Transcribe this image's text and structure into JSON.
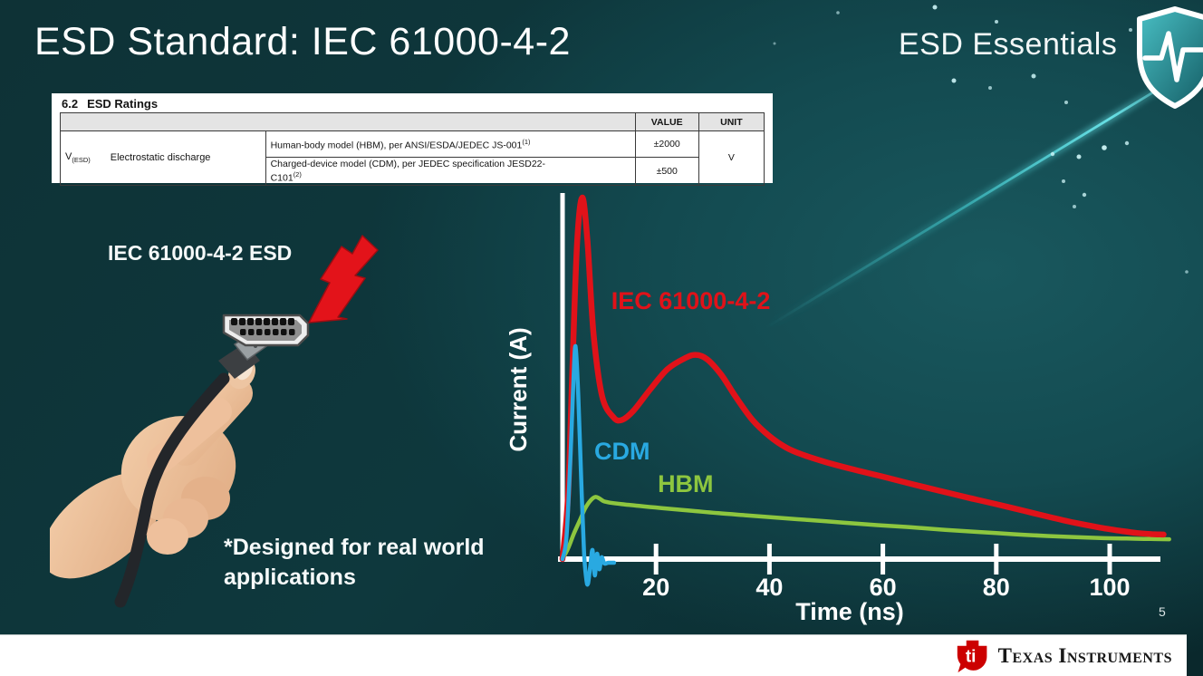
{
  "slide": {
    "title": "ESD Standard: IEC 61000-4-2",
    "program_badge": "ESD Essentials",
    "illustration_label": "IEC 61000-4-2 ESD",
    "note_line1": "*Designed for real world",
    "note_line2": "applications",
    "page_number": "5",
    "footer_brand": "Texas Instruments"
  },
  "ratings_table": {
    "section_number": "6.2",
    "section_title": "ESD Ratings",
    "col_value": "VALUE",
    "col_unit": "UNIT",
    "symbol": "V",
    "symbol_sub": "(ESD)",
    "parameter": "Electrostatic discharge",
    "unit": "V",
    "rows": [
      {
        "description": "Human-body model (HBM), per ANSI/ESDA/JEDEC JS-001",
        "sup": "(1)",
        "value": "±2000"
      },
      {
        "description": "Charged-device model (CDM), per JEDEC specification JESD22-",
        "description_cont": "C101",
        "sup": "(2)",
        "value": "±500"
      }
    ]
  },
  "chart_data": {
    "type": "line",
    "xlabel": "Time (ns)",
    "ylabel": "Current (A)",
    "xlim": [
      0,
      112
    ],
    "ylim": [
      -0.1,
      1.05
    ],
    "x_ticks": [
      20,
      40,
      60,
      80,
      100
    ],
    "grid": false,
    "legend_position": "inline-labels",
    "note": "y axis unlabeled (relative current amplitude, IEC peak = 1.0)",
    "colors": {
      "axis": "#ffffff",
      "iec": "#e01219",
      "cdm": "#29a9e1",
      "hbm": "#8dc63f"
    },
    "series": [
      {
        "name": "HBM",
        "color": "#8dc63f",
        "width": 4.5,
        "label_t": 20.3,
        "label_a": 0.203,
        "points": [
          [
            3.5,
            0
          ],
          [
            4.5,
            0.03
          ],
          [
            5.5,
            0.07
          ],
          [
            6.5,
            0.105
          ],
          [
            7.5,
            0.14
          ],
          [
            8.5,
            0.163
          ],
          [
            9.3,
            0.172
          ],
          [
            10,
            0.168
          ],
          [
            10.8,
            0.16
          ],
          [
            12,
            0.156
          ],
          [
            14,
            0.152
          ],
          [
            17,
            0.147
          ],
          [
            21,
            0.141
          ],
          [
            26,
            0.134
          ],
          [
            31,
            0.127
          ],
          [
            36,
            0.121
          ],
          [
            41,
            0.115
          ],
          [
            47,
            0.108
          ],
          [
            53,
            0.101
          ],
          [
            59,
            0.094
          ],
          [
            65,
            0.088
          ],
          [
            71,
            0.081
          ],
          [
            77,
            0.075
          ],
          [
            83,
            0.069
          ],
          [
            89,
            0.064
          ],
          [
            94,
            0.061
          ],
          [
            99,
            0.058
          ],
          [
            103,
            0.057
          ],
          [
            106,
            0.056
          ],
          [
            110.5,
            0.055
          ]
        ]
      },
      {
        "name": "IEC 61000-4-2",
        "color": "#e01219",
        "width": 6.5,
        "label_t": 12.1,
        "label_a": 0.71,
        "points": [
          [
            3.5,
            0
          ],
          [
            4.5,
            0.18
          ],
          [
            5.3,
            0.55
          ],
          [
            6.1,
            0.88
          ],
          [
            7,
            1.0
          ],
          [
            7.9,
            0.88
          ],
          [
            9,
            0.62
          ],
          [
            10.5,
            0.45
          ],
          [
            12.5,
            0.392
          ],
          [
            14,
            0.385
          ],
          [
            16,
            0.41
          ],
          [
            19,
            0.47
          ],
          [
            22,
            0.525
          ],
          [
            25,
            0.555
          ],
          [
            27,
            0.565
          ],
          [
            29,
            0.553
          ],
          [
            31.5,
            0.51
          ],
          [
            34,
            0.45
          ],
          [
            37,
            0.385
          ],
          [
            40,
            0.34
          ],
          [
            43,
            0.308
          ],
          [
            46,
            0.288
          ],
          [
            50,
            0.268
          ],
          [
            55,
            0.247
          ],
          [
            60,
            0.228
          ],
          [
            65,
            0.208
          ],
          [
            70,
            0.189
          ],
          [
            75,
            0.17
          ],
          [
            80,
            0.152
          ],
          [
            85,
            0.133
          ],
          [
            90,
            0.114
          ],
          [
            94,
            0.1
          ],
          [
            98,
            0.088
          ],
          [
            102,
            0.078
          ],
          [
            105,
            0.072
          ],
          [
            107.5,
            0.069
          ],
          [
            109.5,
            0.068
          ]
        ]
      },
      {
        "name": "CDM",
        "color": "#29a9e1",
        "width": 4.5,
        "label_t": 9.1,
        "label_a": 0.293,
        "points": [
          [
            3.5,
            0
          ],
          [
            4.2,
            0.06
          ],
          [
            4.9,
            0.28
          ],
          [
            5.4,
            0.48
          ],
          [
            5.8,
            0.589
          ],
          [
            6.3,
            0.45
          ],
          [
            6.8,
            0.22
          ],
          [
            7.3,
            0.02
          ],
          [
            7.7,
            -0.055
          ],
          [
            8.0,
            -0.068
          ],
          [
            8.4,
            -0.02
          ],
          [
            8.8,
            0.025
          ],
          [
            9.2,
            -0.045
          ],
          [
            9.6,
            0.015
          ],
          [
            10.0,
            -0.028
          ],
          [
            10.4,
            0.005
          ],
          [
            10.9,
            -0.012
          ],
          [
            11.6,
            -0.01
          ],
          [
            12.6,
            -0.01
          ]
        ]
      }
    ]
  }
}
